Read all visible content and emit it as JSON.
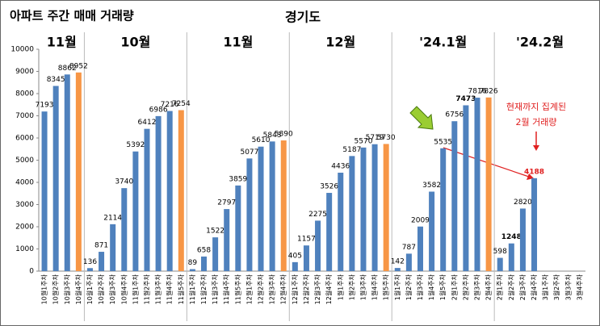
{
  "chart_data": {
    "type": "bar",
    "title": "아파트 주간 매매 거래량",
    "subtitle": "경기도",
    "group_labels": [
      "11월",
      "10월",
      "11월",
      "12월",
      "'24.1월",
      "'24.2월"
    ],
    "annotation": [
      "현재까지 집계된",
      "2월 거래량"
    ],
    "categories": [
      "10월1주차",
      "10월2주차",
      "10월3주차",
      "10월4주차",
      "10월1주차",
      "10월2주차",
      "10월3주차",
      "10월4주차",
      "11월1주차",
      "11월2주차",
      "11월3주차",
      "11월4주차",
      "11월5주차",
      "11월1주차",
      "11월2주차",
      "11월3주차",
      "11월4주차",
      "11월5주차",
      "12월1주차",
      "12월2주차",
      "12월3주차",
      "12월4주차",
      "12월1주차",
      "12월2주차",
      "12월3주차",
      "12월4주차",
      "1월1주차",
      "1월2주차",
      "1월3주차",
      "1월4주차",
      "1월5주차",
      "1월1주차",
      "1월2주차",
      "1월3주차",
      "1월4주차",
      "1월5주차",
      "2월1주차",
      "2월2주차",
      "2월3주차",
      "2월4주차",
      "2월1주차",
      "2월2주차",
      "2월3주차",
      "2월4주차",
      "3월1주차",
      "3월2주차",
      "3월3주차",
      "3월4주차"
    ],
    "values": [
      7193,
      8345,
      8862,
      8952,
      136,
      871,
      2114,
      3740,
      5392,
      6412,
      6986,
      7216,
      7254,
      89,
      658,
      1522,
      2797,
      3859,
      5077,
      5610,
      5843,
      5890,
      405,
      1157,
      2275,
      3526,
      4436,
      5187,
      5570,
      5719,
      5730,
      142,
      787,
      2009,
      3582,
      5535,
      6756,
      7473,
      7816,
      7826,
      598,
      1248,
      2820,
      4188,
      null,
      null,
      null,
      null
    ],
    "colors": [
      "#4f81bd",
      "#4f81bd",
      "#4f81bd",
      "#f79646",
      "#4f81bd",
      "#4f81bd",
      "#4f81bd",
      "#4f81bd",
      "#4f81bd",
      "#4f81bd",
      "#4f81bd",
      "#4f81bd",
      "#f79646",
      "#4f81bd",
      "#4f81bd",
      "#4f81bd",
      "#4f81bd",
      "#4f81bd",
      "#4f81bd",
      "#4f81bd",
      "#4f81bd",
      "#f79646",
      "#4f81bd",
      "#4f81bd",
      "#4f81bd",
      "#4f81bd",
      "#4f81bd",
      "#4f81bd",
      "#4f81bd",
      "#4f81bd",
      "#f79646",
      "#4f81bd",
      "#4f81bd",
      "#4f81bd",
      "#4f81bd",
      "#4f81bd",
      "#4f81bd",
      "#4f81bd",
      "#4f81bd",
      "#f79646",
      "#4f81bd",
      "#4f81bd",
      "#4f81bd",
      "#4f81bd",
      "#4f81bd",
      "#4f81bd",
      "#4f81bd",
      "#4f81bd"
    ],
    "ylim": [
      0,
      10000
    ],
    "yticks": [
      0,
      1000,
      2000,
      3000,
      4000,
      5000,
      6000,
      7000,
      8000,
      9000,
      10000
    ]
  }
}
